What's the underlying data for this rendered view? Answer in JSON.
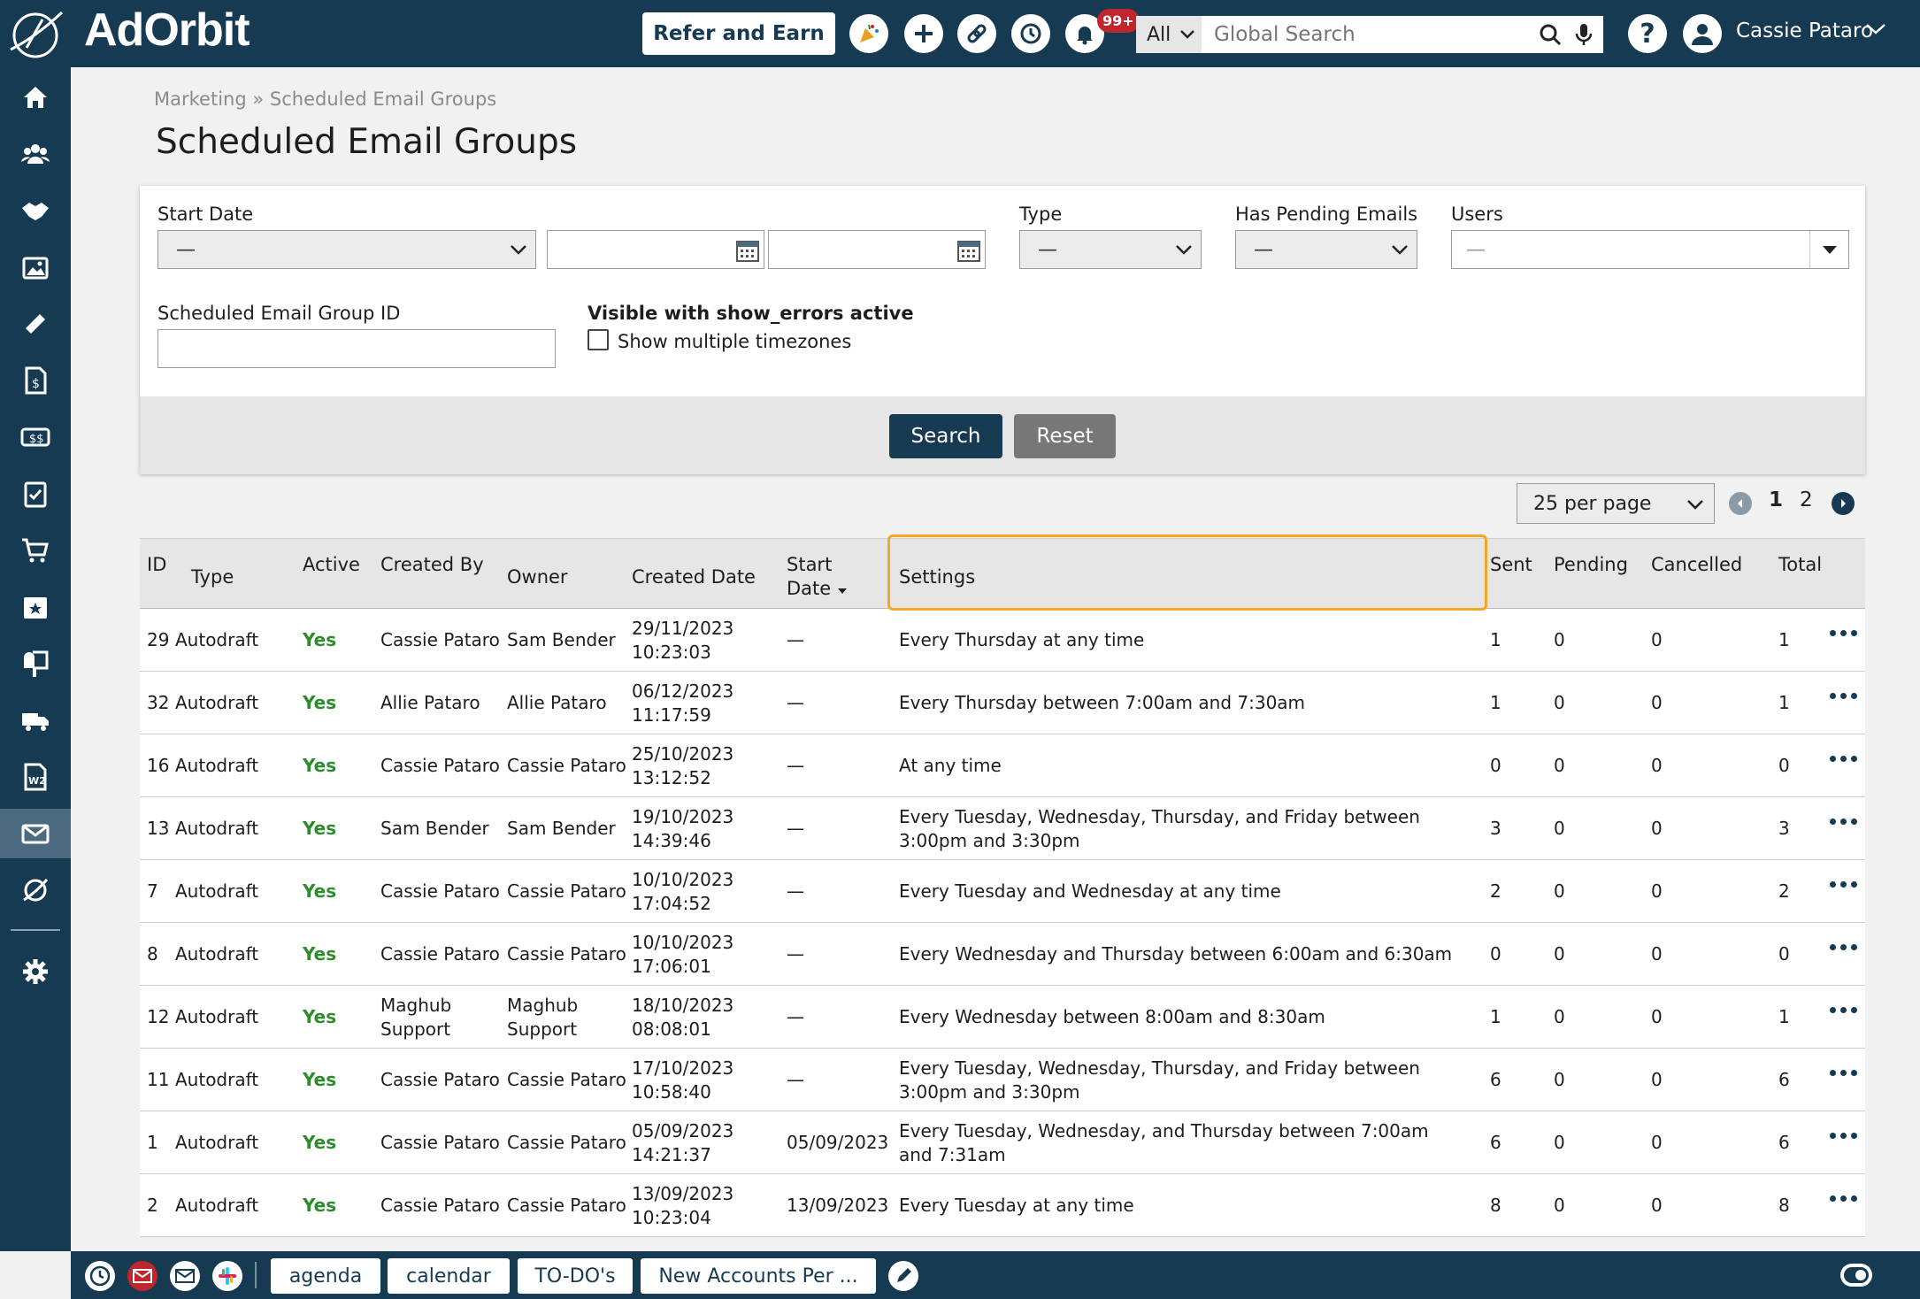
{
  "app": {
    "brand": "AdOrbit"
  },
  "topbar": {
    "refer_label": "Refer and Earn",
    "notifications_badge": "99+",
    "search_scope": "All",
    "search_placeholder": "Global Search",
    "help_label": "?",
    "user_name": "Cassie Pataro"
  },
  "breadcrumb": {
    "parent": "Marketing",
    "separator": "»",
    "current": "Scheduled Email Groups"
  },
  "page_title": "Scheduled Email Groups",
  "filters": {
    "start_date_label": "Start Date",
    "start_date_value": "—",
    "type_label": "Type",
    "type_value": "—",
    "pending_label": "Has Pending Emails",
    "pending_value": "—",
    "users_label": "Users",
    "users_value": "—",
    "group_id_label": "Scheduled Email Group ID",
    "show_errors_label": "Visible with show_errors active",
    "timezones_label": "Show multiple timezones",
    "search_label": "Search",
    "reset_label": "Reset"
  },
  "pagination": {
    "per_page": "25 per page",
    "pages": [
      "1",
      "2"
    ]
  },
  "table": {
    "headers": {
      "id": "ID",
      "type": "Type",
      "active": "Active",
      "created_by": "Created By",
      "owner": "Owner",
      "created_date": "Created Date",
      "start_date_1": "Start",
      "start_date_2": "Date",
      "settings": "Settings",
      "sent": "Sent",
      "pending": "Pending",
      "cancelled": "Cancelled",
      "total": "Total"
    },
    "rows": [
      {
        "id": "29",
        "type": "Autodraft",
        "active": "Yes",
        "created_by": "Cassie Pataro",
        "owner": "Sam Bender",
        "date": "29/11/2023",
        "time": "10:23:03",
        "start": "—",
        "settings": "Every Thursday at any time",
        "sent": "1",
        "pending": "0",
        "cancelled": "0",
        "total": "1"
      },
      {
        "id": "32",
        "type": "Autodraft",
        "active": "Yes",
        "created_by": "Allie Pataro",
        "owner": "Allie Pataro",
        "date": "06/12/2023",
        "time": "11:17:59",
        "start": "—",
        "settings": "Every Thursday between 7:00am and 7:30am",
        "sent": "1",
        "pending": "0",
        "cancelled": "0",
        "total": "1"
      },
      {
        "id": "16",
        "type": "Autodraft",
        "active": "Yes",
        "created_by": "Cassie Pataro",
        "owner": "Cassie Pataro",
        "date": "25/10/2023",
        "time": "13:12:52",
        "start": "—",
        "settings": "At any time",
        "sent": "0",
        "pending": "0",
        "cancelled": "0",
        "total": "0"
      },
      {
        "id": "13",
        "type": "Autodraft",
        "active": "Yes",
        "created_by": "Sam Bender",
        "owner": "Sam Bender",
        "date": "19/10/2023",
        "time": "14:39:46",
        "start": "—",
        "settings": "Every Tuesday, Wednesday, Thursday, and Friday between 3:00pm and 3:30pm",
        "sent": "3",
        "pending": "0",
        "cancelled": "0",
        "total": "3"
      },
      {
        "id": "7",
        "type": "Autodraft",
        "active": "Yes",
        "created_by": "Cassie Pataro",
        "owner": "Cassie Pataro",
        "date": "10/10/2023",
        "time": "17:04:52",
        "start": "—",
        "settings": "Every Tuesday and Wednesday at any time",
        "sent": "2",
        "pending": "0",
        "cancelled": "0",
        "total": "2"
      },
      {
        "id": "8",
        "type": "Autodraft",
        "active": "Yes",
        "created_by": "Cassie Pataro",
        "owner": "Cassie Pataro",
        "date": "10/10/2023",
        "time": "17:06:01",
        "start": "—",
        "settings": "Every Wednesday and Thursday between 6:00am and 6:30am",
        "sent": "0",
        "pending": "0",
        "cancelled": "0",
        "total": "0"
      },
      {
        "id": "12",
        "type": "Autodraft",
        "active": "Yes",
        "created_by": "Maghub Support",
        "owner": "Maghub Support",
        "date": "18/10/2023",
        "time": "08:08:01",
        "start": "—",
        "settings": "Every Wednesday between 8:00am and 8:30am",
        "sent": "1",
        "pending": "0",
        "cancelled": "0",
        "total": "1"
      },
      {
        "id": "11",
        "type": "Autodraft",
        "active": "Yes",
        "created_by": "Cassie Pataro",
        "owner": "Cassie Pataro",
        "date": "17/10/2023",
        "time": "10:58:40",
        "start": "—",
        "settings": "Every Tuesday, Wednesday, Thursday, and Friday between 3:00pm and 3:30pm",
        "sent": "6",
        "pending": "0",
        "cancelled": "0",
        "total": "6"
      },
      {
        "id": "1",
        "type": "Autodraft",
        "active": "Yes",
        "created_by": "Cassie Pataro",
        "owner": "Cassie Pataro",
        "date": "05/09/2023",
        "time": "14:21:37",
        "start": "05/09/2023",
        "settings": "Every Tuesday, Wednesday, and Thursday between 7:00am and 7:31am",
        "sent": "6",
        "pending": "0",
        "cancelled": "0",
        "total": "6"
      },
      {
        "id": "2",
        "type": "Autodraft",
        "active": "Yes",
        "created_by": "Cassie Pataro",
        "owner": "Cassie Pataro",
        "date": "13/09/2023",
        "time": "10:23:04",
        "start": "13/09/2023",
        "settings": "Every Tuesday at any time",
        "sent": "8",
        "pending": "0",
        "cancelled": "0",
        "total": "8"
      }
    ]
  },
  "bottombar": {
    "tabs": [
      "agenda",
      "calendar",
      "TO-DO's",
      "New Accounts Per ..."
    ]
  },
  "colors": {
    "nav": "#163a52",
    "accent": "#f5a623",
    "active_text": "#2e8b2e",
    "search_button": "#163a52",
    "reset_button": "#777777"
  }
}
